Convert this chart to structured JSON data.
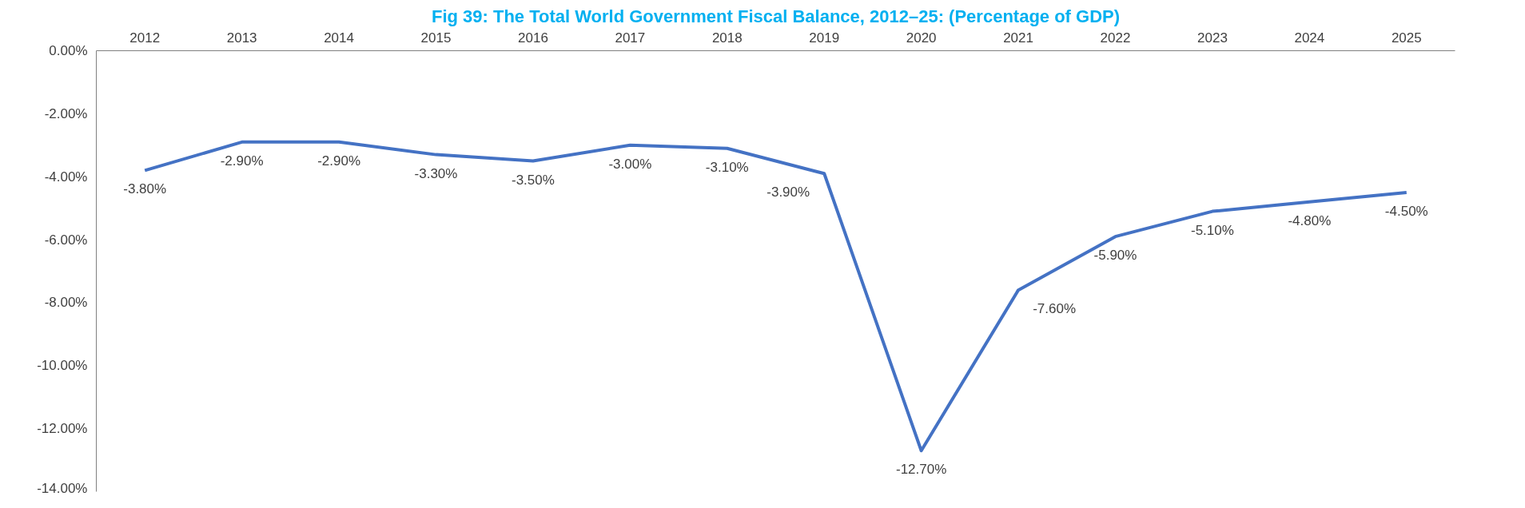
{
  "chart_data": {
    "type": "line",
    "title": "Fig 39: The Total World Government Fiscal Balance, 2012–25: (Percentage of GDP)",
    "categories": [
      "2012",
      "2013",
      "2014",
      "2015",
      "2016",
      "2017",
      "2018",
      "2019",
      "2020",
      "2021",
      "2022",
      "2023",
      "2024",
      "2025"
    ],
    "series": [
      {
        "color": "#4472c4",
        "values": [
          -3.8,
          -2.9,
          -2.9,
          -3.3,
          -3.5,
          -3.0,
          -3.1,
          -3.9,
          -12.7,
          -7.6,
          -5.9,
          -5.1,
          -4.8,
          -4.5
        ],
        "value_labels": [
          "-3.80%",
          "-2.90%",
          "-2.90%",
          "-3.30%",
          "-3.50%",
          "-3.00%",
          "-3.10%",
          "-3.90%",
          "-12.70%",
          "-7.60%",
          "-5.90%",
          "-5.10%",
          "-4.80%",
          "-4.50%"
        ]
      }
    ],
    "ylim": [
      -14,
      0
    ],
    "yticks": [
      {
        "value": 0,
        "label": "0.00%"
      },
      {
        "value": -2,
        "label": "-2.00%"
      },
      {
        "value": -4,
        "label": "-4.00%"
      },
      {
        "value": -6,
        "label": "-6.00%"
      },
      {
        "value": -8,
        "label": "-8.00%"
      },
      {
        "value": -10,
        "label": "-10.00%"
      },
      {
        "value": -12,
        "label": "-12.00%"
      },
      {
        "value": -14,
        "label": "-14.00%"
      }
    ],
    "grid": false,
    "marker": "none",
    "line_style": "solid"
  }
}
